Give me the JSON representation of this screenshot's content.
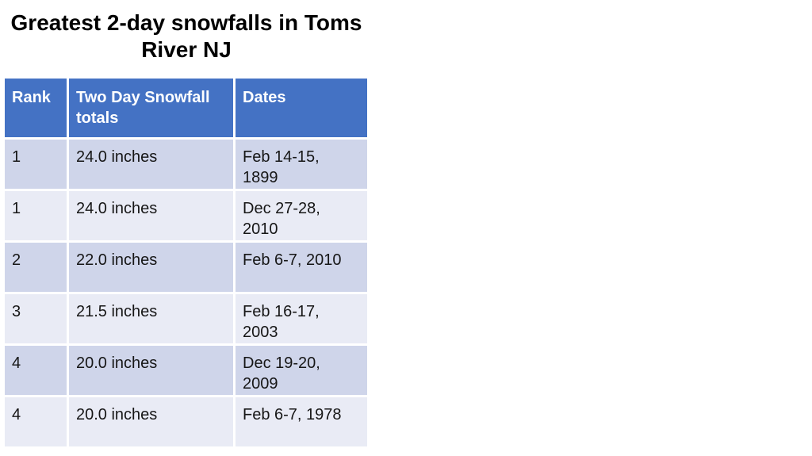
{
  "title": {
    "line1": "Greatest 2-day snowfalls in Toms",
    "line2": "River NJ",
    "full": "Greatest 2-day snowfalls in Toms River NJ"
  },
  "table": {
    "columns": [
      "Rank",
      "Two Day Snowfall totals",
      "Dates"
    ],
    "rows": [
      {
        "rank": "1",
        "total": "24.0 inches",
        "dates": "Feb 14-15, 1899"
      },
      {
        "rank": "1",
        "total": "24.0 inches",
        "dates": "Dec 27-28, 2010"
      },
      {
        "rank": "2",
        "total": "22.0 inches",
        "dates": "Feb 6-7, 2010"
      },
      {
        "rank": "3",
        "total": "21.5 inches",
        "dates": "Feb 16-17, 2003"
      },
      {
        "rank": "4",
        "total": "20.0 inches",
        "dates": "Dec 19-20, 2009"
      },
      {
        "rank": "4",
        "total": "20.0 inches",
        "dates": "Feb 6-7, 1978"
      }
    ]
  },
  "colors": {
    "header_bg": "#4472C4",
    "header_text": "#FFFFFF",
    "band_dark": "#CFD5EA",
    "band_light": "#E9EBF5",
    "divider": "#FFFFFF",
    "title_text": "#000000",
    "body_text": "#161616",
    "page_bg": "#FFFFFF"
  },
  "chart_data": {
    "type": "table",
    "title": "Greatest 2-day snowfalls in Toms River NJ",
    "columns": [
      "Rank",
      "Two Day Snowfall totals",
      "Dates"
    ],
    "rows": [
      [
        "1",
        "24.0 inches",
        "Feb 14-15, 1899"
      ],
      [
        "1",
        "24.0 inches",
        "Dec 27-28, 2010"
      ],
      [
        "2",
        "22.0 inches",
        "Feb 6-7, 2010"
      ],
      [
        "3",
        "21.5 inches",
        "Feb 16-17, 2003"
      ],
      [
        "4",
        "20.0 inches",
        "Dec 19-20, 2009"
      ],
      [
        "4",
        "20.0 inches",
        "Feb 6-7, 1978"
      ]
    ],
    "snowfall_values_inches": [
      24.0,
      24.0,
      22.0,
      21.5,
      20.0,
      20.0
    ],
    "ranks": [
      1,
      1,
      2,
      3,
      4,
      4
    ],
    "layout_hints": {
      "banded_rows": true,
      "header_style": "solid-accent-blue",
      "grid": "white dividers between cells"
    }
  }
}
